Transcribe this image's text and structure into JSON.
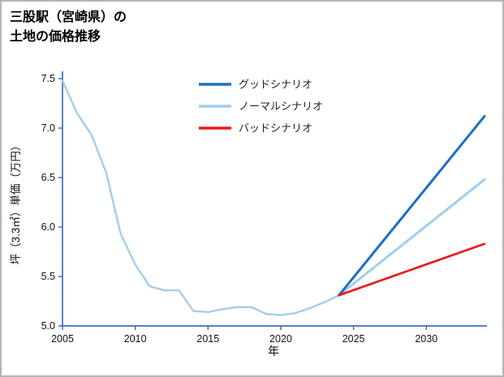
{
  "chart_data": {
    "type": "line",
    "title": "三股駅（宮崎県）の\n土地の価格推移",
    "xlabel": "年",
    "ylabel": "坪（3.3㎡）単価（万円）",
    "xlim": [
      2005,
      2034
    ],
    "ylim": [
      5.0,
      7.5
    ],
    "xticks": [
      2005,
      2010,
      2015,
      2020,
      2025,
      2030
    ],
    "xtick_labels": [
      "2005",
      "2010",
      "2015",
      "2020",
      "2025",
      "2030"
    ],
    "yticks": [
      5.0,
      5.5,
      6.0,
      6.5,
      7.0,
      7.5
    ],
    "ytick_labels": [
      "5.0",
      "5.5",
      "6.0",
      "6.5",
      "7.0",
      "7.5"
    ],
    "grid": false,
    "legend_position": "upper center",
    "colors": {
      "axis": "#3d6fc0",
      "text": "#111111",
      "good": "#1b6ec2",
      "normal": "#a3cdec",
      "bad": "#e8191c",
      "frame_border": "#b5b5b5"
    },
    "series": [
      {
        "key": "historical",
        "color": "#a3cdec",
        "width": 2.4,
        "x": [
          2005,
          2006,
          2007,
          2008,
          2009,
          2010,
          2011,
          2012,
          2013,
          2014,
          2015,
          2016,
          2017,
          2018,
          2019,
          2020,
          2021,
          2022,
          2023,
          2024
        ],
        "y": [
          7.48,
          7.15,
          6.93,
          6.55,
          5.93,
          5.62,
          5.4,
          5.36,
          5.36,
          5.15,
          5.14,
          5.17,
          5.19,
          5.19,
          5.12,
          5.11,
          5.13,
          5.18,
          5.24,
          5.31
        ]
      },
      {
        "key": "normal",
        "label": "ノーマルシナリオ",
        "color": "#a3cdec",
        "width": 3,
        "x": [
          2024,
          2034
        ],
        "y": [
          5.31,
          6.48
        ]
      },
      {
        "key": "good",
        "label": "グッドシナリオ",
        "color": "#1b6ec2",
        "width": 3,
        "x": [
          2024,
          2034
        ],
        "y": [
          5.31,
          7.12
        ]
      },
      {
        "key": "bad",
        "label": "バッドシナリオ",
        "color": "#e8191c",
        "width": 2.7,
        "x": [
          2024,
          2034
        ],
        "y": [
          5.31,
          5.83
        ]
      }
    ],
    "legend": [
      {
        "label": "グッドシナリオ",
        "color": "#1b6ec2"
      },
      {
        "label": "ノーマルシナリオ",
        "color": "#a3cdec"
      },
      {
        "label": "バッドシナリオ",
        "color": "#e8191c"
      }
    ]
  }
}
